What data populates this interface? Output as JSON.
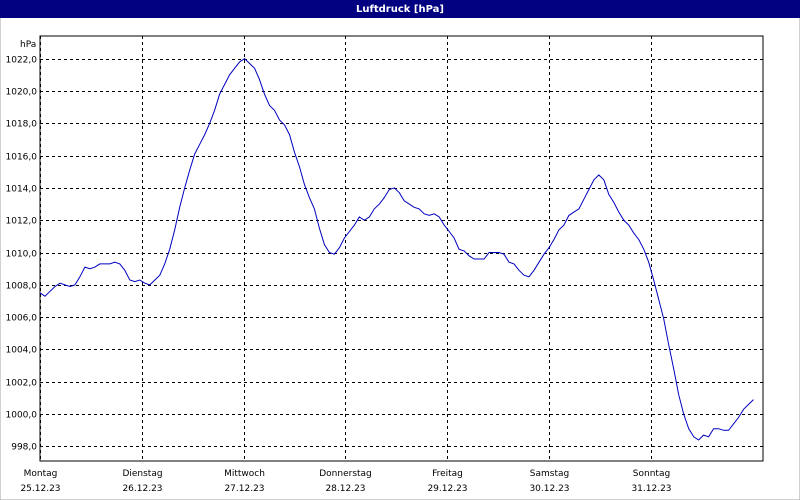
{
  "chart_data": {
    "type": "line",
    "title": "Luftdruck [hPa]",
    "y_label": "hPa",
    "x": [
      0,
      0.049,
      0.098,
      0.147,
      0.196,
      0.245,
      0.294,
      0.343,
      0.392,
      0.441,
      0.49,
      0.539,
      0.588,
      0.637,
      0.686,
      0.735,
      0.784,
      0.833,
      0.882,
      0.931,
      0.98,
      1.029,
      1.078,
      1.127,
      1.176,
      1.225,
      1.274,
      1.323,
      1.372,
      1.421,
      1.47,
      1.519,
      1.568,
      1.617,
      1.666,
      1.715,
      1.764,
      1.813,
      1.862,
      1.911,
      1.96,
      2.009,
      2.058,
      2.107,
      2.156,
      2.205,
      2.254,
      2.303,
      2.352,
      2.401,
      2.45,
      2.499,
      2.548,
      2.597,
      2.646,
      2.695,
      2.744,
      2.793,
      2.842,
      2.891,
      2.94,
      2.989,
      3.038,
      3.087,
      3.136,
      3.185,
      3.234,
      3.283,
      3.332,
      3.381,
      3.43,
      3.479,
      3.528,
      3.577,
      3.626,
      3.675,
      3.724,
      3.773,
      3.822,
      3.871,
      3.92,
      3.969,
      4.018,
      4.067,
      4.116,
      4.165,
      4.214,
      4.263,
      4.312,
      4.361,
      4.41,
      4.459,
      4.508,
      4.557,
      4.606,
      4.655,
      4.704,
      4.753,
      4.802,
      4.851,
      4.9,
      4.949,
      4.998,
      5.047,
      5.096,
      5.145,
      5.194,
      5.243,
      5.292,
      5.341,
      5.39,
      5.439,
      5.488,
      5.537,
      5.586,
      5.635,
      5.684,
      5.733,
      5.782,
      5.831,
      5.88,
      5.929,
      5.978,
      6.027,
      6.076,
      6.125,
      6.174,
      6.223,
      6.272,
      6.321,
      6.37,
      6.419,
      6.468,
      6.517,
      6.566,
      6.615,
      6.664,
      6.713,
      6.762,
      6.811,
      6.86,
      6.909,
      6.958,
      7.007
    ],
    "series": [
      {
        "color": "#0000c0",
        "values": [
          1007.5,
          1007.3,
          1007.6,
          1007.9,
          1008.1,
          1008.0,
          1007.9,
          1008.0,
          1008.5,
          1009.1,
          1009.0,
          1009.1,
          1009.3,
          1009.3,
          1009.3,
          1009.4,
          1009.3,
          1008.9,
          1008.3,
          1008.2,
          1008.3,
          1008.1,
          1008.0,
          1008.3,
          1008.6,
          1009.3,
          1010.2,
          1011.4,
          1012.8,
          1014.0,
          1015.1,
          1016.1,
          1016.7,
          1017.3,
          1018.0,
          1018.8,
          1019.8,
          1020.4,
          1021.0,
          1021.4,
          1021.8,
          1022.0,
          1021.7,
          1021.4,
          1020.7,
          1019.8,
          1019.1,
          1018.8,
          1018.2,
          1017.9,
          1017.3,
          1016.2,
          1015.3,
          1014.2,
          1013.4,
          1012.7,
          1011.5,
          1010.5,
          1010.0,
          1009.9,
          1010.3,
          1010.9,
          1011.3,
          1011.7,
          1012.2,
          1012.0,
          1012.2,
          1012.7,
          1013.0,
          1013.4,
          1013.9,
          1014.0,
          1013.7,
          1013.2,
          1013.0,
          1012.8,
          1012.7,
          1012.4,
          1012.3,
          1012.4,
          1012.2,
          1011.7,
          1011.3,
          1010.9,
          1010.2,
          1010.1,
          1009.8,
          1009.6,
          1009.6,
          1009.6,
          1010.0,
          1010.0,
          1010.0,
          1009.9,
          1009.4,
          1009.3,
          1008.9,
          1008.6,
          1008.5,
          1008.9,
          1009.4,
          1009.9,
          1010.3,
          1010.8,
          1011.4,
          1011.7,
          1012.3,
          1012.5,
          1012.7,
          1013.3,
          1013.9,
          1014.5,
          1014.8,
          1014.5,
          1013.6,
          1013.1,
          1012.5,
          1012.0,
          1011.7,
          1011.2,
          1010.8,
          1010.2,
          1009.4,
          1008.3,
          1007.1,
          1005.9,
          1004.3,
          1002.8,
          1001.2,
          1000.0,
          999.1,
          998.6,
          998.4,
          998.7,
          998.6,
          999.1,
          999.1,
          999.0,
          999.0,
          999.4,
          999.8,
          1000.3,
          1000.6,
          1000.9
        ]
      }
    ],
    "xlim": [
      0,
      7.1
    ],
    "xticks": [
      {
        "value": 0,
        "label": "Montag",
        "sublabel": "25.12.23"
      },
      {
        "value": 1,
        "label": "Dienstag",
        "sublabel": "26.12.23"
      },
      {
        "value": 2,
        "label": "Mittwoch",
        "sublabel": "27.12.23"
      },
      {
        "value": 3,
        "label": "Donnerstag",
        "sublabel": "28.12.23"
      },
      {
        "value": 4,
        "label": "Freitag",
        "sublabel": "29.12.23"
      },
      {
        "value": 5,
        "label": "Samstag",
        "sublabel": "30.12.23"
      },
      {
        "value": 6,
        "label": "Sonntag",
        "sublabel": "31.12.23"
      }
    ],
    "ylim": [
      997.1,
      1023.4
    ],
    "yticks": [
      {
        "value": 998,
        "label": "998,0"
      },
      {
        "value": 1000,
        "label": "1000,0"
      },
      {
        "value": 1002,
        "label": "1002,0"
      },
      {
        "value": 1004,
        "label": "1004,0"
      },
      {
        "value": 1006,
        "label": "1006,0"
      },
      {
        "value": 1008,
        "label": "1008,0"
      },
      {
        "value": 1010,
        "label": "1010,0"
      },
      {
        "value": 1012,
        "label": "1012,0"
      },
      {
        "value": 1014,
        "label": "1014,0"
      },
      {
        "value": 1016,
        "label": "1016,0"
      },
      {
        "value": 1018,
        "label": "1018,0"
      },
      {
        "value": 1020,
        "label": "1020,0"
      },
      {
        "value": 1022,
        "label": "1022,0"
      }
    ],
    "grid": true
  }
}
